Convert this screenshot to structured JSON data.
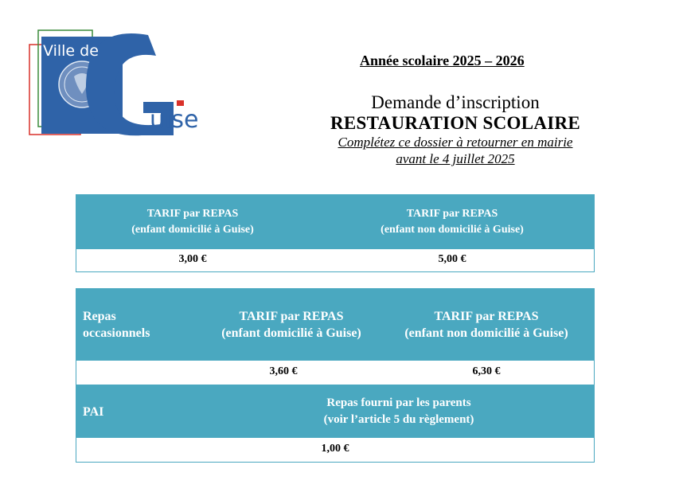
{
  "logo": {
    "text_top": "Ville de",
    "text_bottom": "uise",
    "big_letter": "G"
  },
  "header": {
    "school_year": "Année scolaire 2025 – 2026",
    "doc_type": "Demande d’inscription",
    "doc_title": "RESTAURATION SCOLAIRE",
    "instruction_line1": "Complétez ce dossier à retourner en mairie",
    "instruction_line2": "avant le 4 juillet 2025"
  },
  "table1": {
    "col1_line1": "TARIF par REPAS",
    "col1_line2": "(enfant domicilié à Guise)",
    "col2_line1": "TARIF par REPAS",
    "col2_line2": "(enfant non domicilié à Guise)",
    "col1_value": "3,00 €",
    "col2_value": "5,00 €"
  },
  "table2": {
    "row1_label_line1": "Repas",
    "row1_label_line2": "occasionnels",
    "col1_line1": "TARIF par REPAS",
    "col1_line2": "(enfant domicilié à Guise)",
    "col2_line1": "TARIF par REPAS",
    "col2_line2": "(enfant non domicilié à Guise)",
    "col1_value": "3,60 €",
    "col2_value": "6,30 €",
    "row2_label": "PAI",
    "row2_desc_line1": "Repas fourni par les parents",
    "row2_desc_line2": "(voir l’article 5 du règlement)",
    "row2_value": "1,00 €"
  },
  "colors": {
    "band": "#4aa8c0",
    "logo_blue": "#2f63a8",
    "logo_red": "#d9312a",
    "logo_green": "#3a8a3a"
  }
}
